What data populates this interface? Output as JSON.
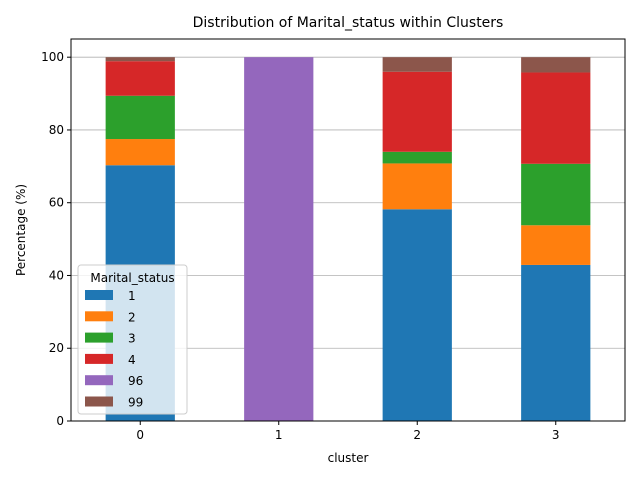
{
  "chart_data": {
    "type": "bar",
    "stacked": true,
    "title": "Distribution of Marital_status within Clusters",
    "xlabel": "cluster",
    "ylabel": "Percentage (%)",
    "ylim": [
      0,
      105
    ],
    "yticks": [
      0,
      20,
      40,
      60,
      80,
      100
    ],
    "grid": "horizontal",
    "legend": {
      "title": "Marital_status",
      "placement": "lower-left"
    },
    "categories": [
      "0",
      "1",
      "2",
      "3"
    ],
    "series": [
      {
        "name": "1",
        "color": "#1f77b4",
        "values": [
          70.3,
          0,
          58.2,
          42.9
        ]
      },
      {
        "name": "2",
        "color": "#ff7f0e",
        "values": [
          7.2,
          0,
          12.6,
          10.9
        ]
      },
      {
        "name": "3",
        "color": "#2ca02c",
        "values": [
          11.9,
          0,
          3.2,
          16.9
        ]
      },
      {
        "name": "4",
        "color": "#d62728",
        "values": [
          9.5,
          0,
          22.0,
          25.1
        ]
      },
      {
        "name": "96",
        "color": "#9467bd",
        "values": [
          0,
          100,
          0,
          0
        ]
      },
      {
        "name": "99",
        "color": "#8c564b",
        "values": [
          1.1,
          0,
          4.0,
          4.2
        ]
      }
    ]
  }
}
